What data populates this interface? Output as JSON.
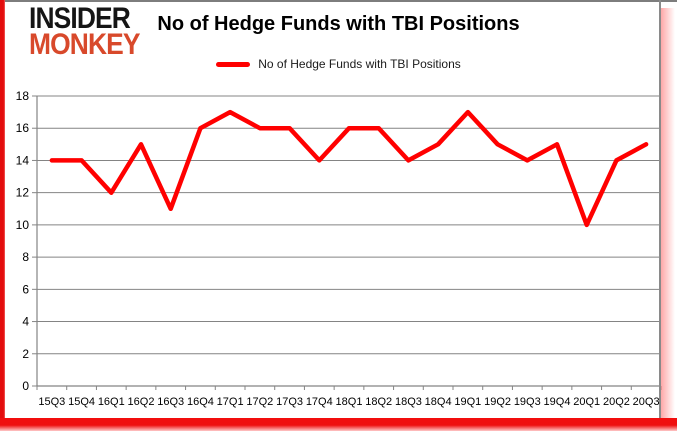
{
  "header": {
    "logo_line1": "INSIDER",
    "logo_line2": "MONKEY",
    "title": "No of Hedge Funds with TBI Positions"
  },
  "legend": {
    "label": "No of Hedge Funds with TBI Positions"
  },
  "chart_data": {
    "type": "line",
    "title": "No of Hedge Funds with TBI Positions",
    "categories": [
      "15Q3",
      "15Q4",
      "16Q1",
      "16Q2",
      "16Q3",
      "16Q4",
      "17Q1",
      "17Q2",
      "17Q3",
      "17Q4",
      "18Q1",
      "18Q2",
      "18Q3",
      "18Q4",
      "19Q1",
      "19Q2",
      "19Q3",
      "19Q4",
      "20Q1",
      "20Q2",
      "20Q3"
    ],
    "series": [
      {
        "name": "No of Hedge Funds with TBI Positions",
        "color": "#ff0000",
        "values": [
          14,
          14,
          12,
          15,
          11,
          16,
          17,
          16,
          16,
          14,
          16,
          16,
          14,
          15,
          17,
          15,
          14,
          15,
          10,
          14,
          15
        ]
      }
    ],
    "xlabel": "",
    "ylabel": "",
    "ylim": [
      0,
      18
    ],
    "ytick_step": 2,
    "grid": "horizontal",
    "legend_position": "top-center"
  },
  "colors": {
    "line_red": "#ff0000",
    "logo_black": "#151515",
    "logo_red": "#d8492b",
    "frame_red": "#ee0d0d",
    "frame_gray": "#7d7d7d",
    "grid_gray": "#848484",
    "text_black": "#000000"
  }
}
